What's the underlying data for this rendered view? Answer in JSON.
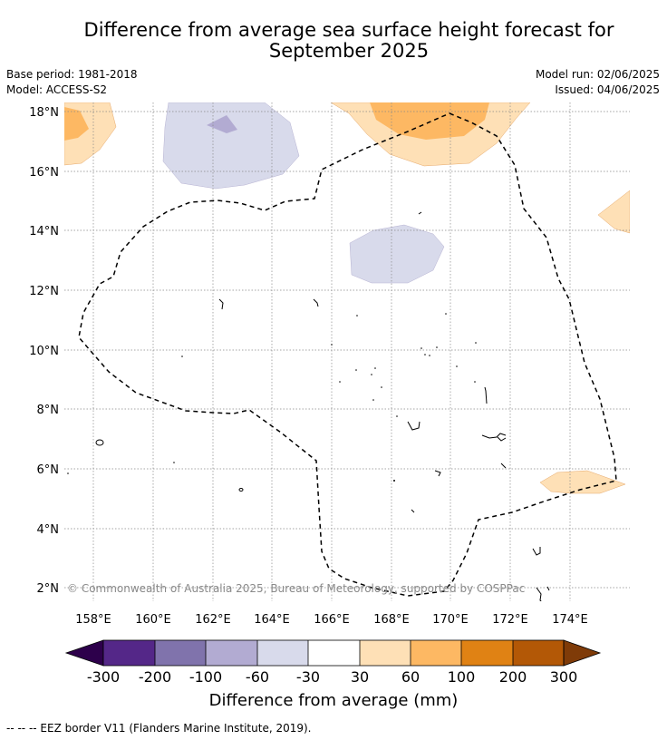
{
  "title_line1": "Difference from average sea surface height forecast for",
  "title_line2": "September 2025",
  "base_period": "Base period: 1981-2018",
  "model": "Model: ACCESS-S2",
  "model_run": "Model run: 02/06/2025",
  "issued": "Issued: 04/06/2025",
  "copyright": "© Commonwealth of Australia 2025, Bureau of Meteorology, supported by COSPPac",
  "lat_labels": [
    "18°N",
    "16°N",
    "14°N",
    "12°N",
    "10°N",
    "8°N",
    "6°N",
    "4°N",
    "2°N"
  ],
  "lon_labels": [
    "158°E",
    "160°E",
    "162°E",
    "164°E",
    "166°E",
    "168°E",
    "170°E",
    "172°E",
    "174°E"
  ],
  "colorbar": {
    "ticks": [
      "-300",
      "-200",
      "-100",
      "-60",
      "-30",
      "30",
      "60",
      "100",
      "200",
      "300"
    ],
    "title": "Difference from average (mm)",
    "colors": {
      "under": "#2d004b",
      "c1": "#542788",
      "c2": "#8073ac",
      "c3": "#b2abd2",
      "c4": "#d8daeb",
      "c5": "#ffffff",
      "c6": "#fee0b6",
      "c7": "#fdb863",
      "c8": "#e08214",
      "c9": "#b35806",
      "over": "#7f3b08"
    }
  },
  "footnote": "--  --  -- EEZ border V11 (Flanders Marine Institute, 2019)."
}
